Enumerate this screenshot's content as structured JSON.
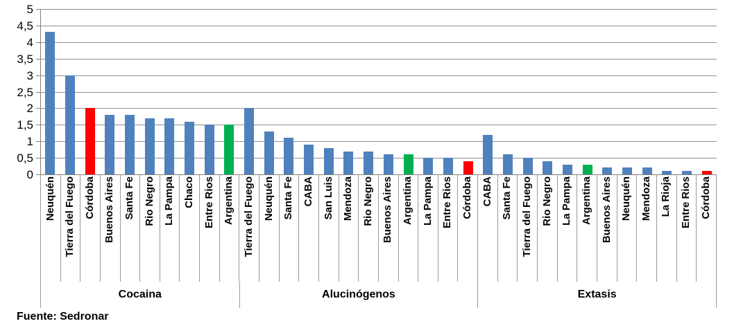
{
  "chart_data": {
    "type": "bar",
    "title": "",
    "xlabel": "",
    "ylabel": "",
    "ylim": [
      0,
      5
    ],
    "ytick_step": 0.5,
    "decimal_separator": ",",
    "grid": true,
    "legend": false,
    "yticks": [
      {
        "value": 5,
        "label": "5"
      },
      {
        "value": 4.5,
        "label": "4,5"
      },
      {
        "value": 4,
        "label": "4"
      },
      {
        "value": 3.5,
        "label": "3,5"
      },
      {
        "value": 3,
        "label": "3"
      },
      {
        "value": 2.5,
        "label": "2,5"
      },
      {
        "value": 2,
        "label": "2"
      },
      {
        "value": 1.5,
        "label": "1,5"
      },
      {
        "value": 1,
        "label": "1"
      },
      {
        "value": 0.5,
        "label": "0,5"
      },
      {
        "value": 0,
        "label": "0"
      }
    ],
    "palette": {
      "blue": "#4F81BD",
      "red": "#FF0000",
      "green": "#00B050"
    },
    "groups": [
      {
        "label": "Cocaina",
        "bars": [
          {
            "category": "Neuquén",
            "value": 4.3,
            "color": "blue"
          },
          {
            "category": "Tierra del Fuego",
            "value": 3.0,
            "color": "blue"
          },
          {
            "category": "Córdoba",
            "value": 2.0,
            "color": "red"
          },
          {
            "category": "Buenos Aires",
            "value": 1.8,
            "color": "blue"
          },
          {
            "category": "Santa Fe",
            "value": 1.8,
            "color": "blue"
          },
          {
            "category": "Rio Negro",
            "value": 1.7,
            "color": "blue"
          },
          {
            "category": "La Pampa",
            "value": 1.7,
            "color": "blue"
          },
          {
            "category": "Chaco",
            "value": 1.6,
            "color": "blue"
          },
          {
            "category": "Entre Rios",
            "value": 1.5,
            "color": "blue"
          },
          {
            "category": "Argentina",
            "value": 1.5,
            "color": "green"
          }
        ]
      },
      {
        "label": "Alucinógenos",
        "bars": [
          {
            "category": "Tierra del Fuego",
            "value": 2.0,
            "color": "blue"
          },
          {
            "category": "Neuquén",
            "value": 1.3,
            "color": "blue"
          },
          {
            "category": "Santa Fe",
            "value": 1.1,
            "color": "blue"
          },
          {
            "category": "CABA",
            "value": 0.9,
            "color": "blue"
          },
          {
            "category": "San Luis",
            "value": 0.8,
            "color": "blue"
          },
          {
            "category": "Mendoza",
            "value": 0.7,
            "color": "blue"
          },
          {
            "category": "Rio Negro",
            "value": 0.7,
            "color": "blue"
          },
          {
            "category": "Buenos Aires",
            "value": 0.6,
            "color": "blue"
          },
          {
            "category": "Argentina",
            "value": 0.6,
            "color": "green"
          },
          {
            "category": "La Pampa",
            "value": 0.5,
            "color": "blue"
          },
          {
            "category": "Entre Rios",
            "value": 0.5,
            "color": "blue"
          },
          {
            "category": "Córdoba",
            "value": 0.4,
            "color": "red"
          }
        ]
      },
      {
        "label": "Extasis",
        "bars": [
          {
            "category": "CABA",
            "value": 1.2,
            "color": "blue"
          },
          {
            "category": "Santa Fe",
            "value": 0.6,
            "color": "blue"
          },
          {
            "category": "Tierra del Fuego",
            "value": 0.5,
            "color": "blue"
          },
          {
            "category": "Rio Negro",
            "value": 0.4,
            "color": "blue"
          },
          {
            "category": "La Pampa",
            "value": 0.3,
            "color": "blue"
          },
          {
            "category": "Argentina",
            "value": 0.3,
            "color": "green"
          },
          {
            "category": "Buenos Aires",
            "value": 0.2,
            "color": "blue"
          },
          {
            "category": "Neuquén",
            "value": 0.2,
            "color": "blue"
          },
          {
            "category": "Mendoza",
            "value": 0.2,
            "color": "blue"
          },
          {
            "category": "La Rioja",
            "value": 0.1,
            "color": "blue"
          },
          {
            "category": "Entre Rios",
            "value": 0.1,
            "color": "blue"
          },
          {
            "category": "Córdoba",
            "value": 0.1,
            "color": "red"
          }
        ]
      }
    ]
  },
  "footer": {
    "source_label": "Fuente: Sedronar"
  }
}
